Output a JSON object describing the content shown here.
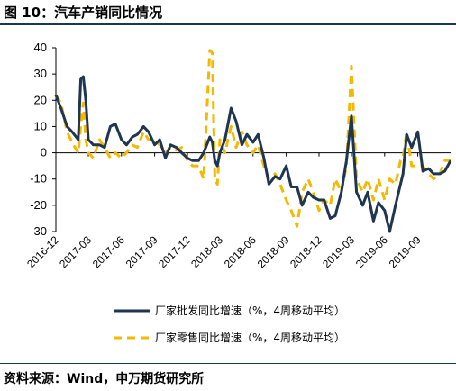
{
  "title": "图 10：汽车产销同比情况",
  "source": "资料来源：Wind，申万期货研究所",
  "colors": {
    "wholesale": "#1f3650",
    "retail": "#f5b800",
    "rule": "#1f3650"
  },
  "chart_data": {
    "type": "line",
    "ylim": [
      -30,
      40
    ],
    "yticks": [
      40,
      30,
      20,
      10,
      0,
      -10,
      -20,
      -30
    ],
    "xlim": [
      "2016-12",
      "2019-12"
    ],
    "xticks": [
      "2016-12",
      "2017-03",
      "2017-06",
      "2017-09",
      "2017-12",
      "2018-03",
      "2018-06",
      "2018-09",
      "2018-12",
      "2019-03",
      "2019-06",
      "2019-09"
    ],
    "grid": false,
    "legend_position": "bottom",
    "series": [
      {
        "name": "厂家批发同比增速（%，4周移动平均）",
        "style": "solid",
        "x": [
          "2016-12-01",
          "2016-12-15",
          "2017-01-01",
          "2017-01-15",
          "2017-02-01",
          "2017-02-08",
          "2017-02-15",
          "2017-02-22",
          "2017-03-01",
          "2017-03-15",
          "2017-04-01",
          "2017-04-15",
          "2017-05-01",
          "2017-05-15",
          "2017-06-01",
          "2017-06-15",
          "2017-07-01",
          "2017-07-15",
          "2017-08-01",
          "2017-08-15",
          "2017-09-01",
          "2017-09-15",
          "2017-10-01",
          "2017-10-15",
          "2017-11-01",
          "2017-11-15",
          "2017-12-01",
          "2017-12-15",
          "2018-01-01",
          "2018-01-15",
          "2018-02-01",
          "2018-02-08",
          "2018-02-15",
          "2018-02-22",
          "2018-03-01",
          "2018-03-15",
          "2018-04-01",
          "2018-04-15",
          "2018-05-01",
          "2018-05-15",
          "2018-06-01",
          "2018-06-15",
          "2018-07-01",
          "2018-07-15",
          "2018-08-01",
          "2018-08-15",
          "2018-09-01",
          "2018-09-15",
          "2018-10-01",
          "2018-10-15",
          "2018-11-01",
          "2018-11-15",
          "2018-12-01",
          "2018-12-15",
          "2019-01-01",
          "2019-01-15",
          "2019-02-01",
          "2019-02-15",
          "2019-03-01",
          "2019-03-15",
          "2019-04-01",
          "2019-04-15",
          "2019-05-01",
          "2019-05-15",
          "2019-06-01",
          "2019-06-15",
          "2019-07-01",
          "2019-07-15",
          "2019-07-22",
          "2019-08-01",
          "2019-08-15",
          "2019-09-01",
          "2019-09-15",
          "2019-10-01",
          "2019-10-15",
          "2019-11-01",
          "2019-11-15",
          "2019-12-01"
        ],
        "values": [
          22,
          17,
          10,
          8,
          5,
          28,
          29,
          20,
          5,
          3,
          3,
          2,
          10,
          11,
          5,
          3,
          6,
          7,
          10,
          8,
          3,
          5,
          -2,
          3,
          2,
          0,
          -2,
          -3,
          -3,
          0,
          6,
          4,
          -3,
          -5,
          0,
          5,
          17,
          12,
          3,
          7,
          4,
          7,
          -2,
          -12,
          -9,
          -10,
          -5,
          -13,
          -13,
          -20,
          -15,
          -17,
          -18,
          -18,
          -25,
          -24,
          -15,
          -3,
          14,
          -15,
          -20,
          -15,
          -26,
          -19,
          -22,
          -30,
          -20,
          -12,
          -8,
          7,
          2,
          8,
          -7,
          -6,
          -8,
          -8,
          -7,
          -3
        ]
      },
      {
        "name": "厂家零售同比增速（%，4周移动平均）",
        "style": "dashed",
        "x": [
          "2016-12-01",
          "2016-12-15",
          "2017-01-01",
          "2017-01-15",
          "2017-02-01",
          "2017-02-08",
          "2017-02-15",
          "2017-02-22",
          "2017-03-01",
          "2017-03-15",
          "2017-04-01",
          "2017-04-15",
          "2017-05-01",
          "2017-05-15",
          "2017-06-01",
          "2017-06-15",
          "2017-07-01",
          "2017-07-15",
          "2017-08-01",
          "2017-08-15",
          "2017-09-01",
          "2017-09-15",
          "2017-10-01",
          "2017-10-15",
          "2017-11-01",
          "2017-11-15",
          "2017-12-01",
          "2017-12-15",
          "2018-01-01",
          "2018-01-15",
          "2018-02-01",
          "2018-02-08",
          "2018-02-15",
          "2018-02-22",
          "2018-03-01",
          "2018-03-15",
          "2018-04-01",
          "2018-04-15",
          "2018-05-01",
          "2018-05-15",
          "2018-06-01",
          "2018-06-15",
          "2018-07-01",
          "2018-07-15",
          "2018-08-01",
          "2018-08-15",
          "2018-09-01",
          "2018-09-15",
          "2018-10-01",
          "2018-10-15",
          "2018-11-01",
          "2018-11-15",
          "2018-12-01",
          "2018-12-15",
          "2019-01-01",
          "2019-01-15",
          "2019-02-01",
          "2019-02-15",
          "2019-03-01",
          "2019-03-15",
          "2019-04-01",
          "2019-04-15",
          "2019-05-01",
          "2019-05-15",
          "2019-06-01",
          "2019-06-15",
          "2019-07-01",
          "2019-07-15",
          "2019-07-22",
          "2019-08-01",
          "2019-08-15",
          "2019-09-01",
          "2019-09-15",
          "2019-10-01",
          "2019-10-15",
          "2019-11-01",
          "2019-11-15",
          "2019-12-01"
        ],
        "values": [
          22,
          19,
          8,
          4,
          0,
          10,
          19,
          5,
          0,
          -2,
          5,
          2,
          -2,
          0,
          -2,
          0,
          3,
          2,
          8,
          5,
          5,
          3,
          0,
          2,
          1,
          2,
          -3,
          -5,
          -5,
          -10,
          39,
          38,
          -10,
          -12,
          5,
          0,
          10,
          2,
          8,
          3,
          0,
          3,
          -5,
          -10,
          -8,
          -12,
          -18,
          -22,
          -28,
          -15,
          -10,
          -15,
          -22,
          -18,
          -20,
          -10,
          -15,
          -5,
          33,
          -10,
          -15,
          -10,
          -18,
          -10,
          -18,
          -10,
          -12,
          -3,
          -2,
          8,
          -5,
          -5,
          -5,
          -8,
          -10,
          -8,
          -3,
          -3
        ]
      }
    ]
  }
}
